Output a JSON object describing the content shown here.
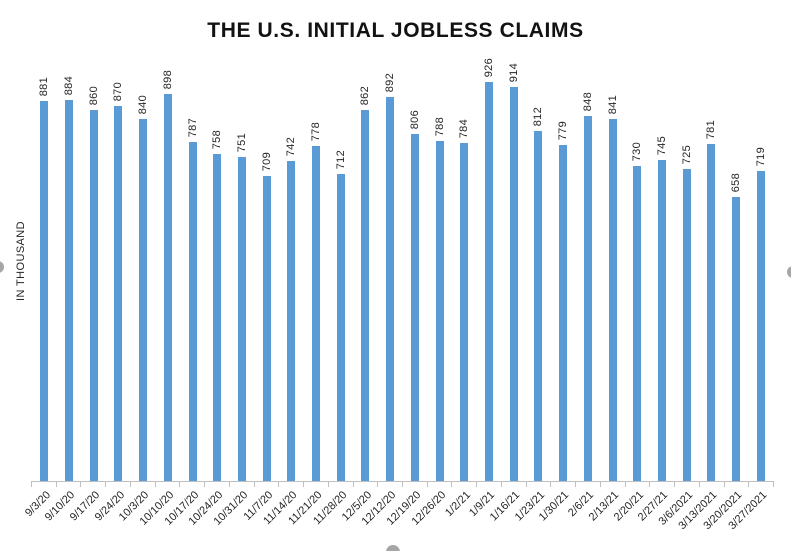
{
  "chart_data": {
    "type": "bar",
    "title": "THE U.S. INITIAL JOBLESS CLAIMS",
    "xlabel": "",
    "ylabel": "IN THOUSAND",
    "categories": [
      "9/3/20",
      "9/10/20",
      "9/17/20",
      "9/24/20",
      "10/3/20",
      "10/10/20",
      "10/17/20",
      "10/24/20",
      "10/31/20",
      "11/7/20",
      "11/14/20",
      "11/21/20",
      "11/28/20",
      "12/5/20",
      "12/12/20",
      "12/19/20",
      "12/26/20",
      "1/2/21",
      "1/9/21",
      "1/16/21",
      "1/23/21",
      "1/30/21",
      "2/6/21",
      "2/13/21",
      "2/20/21",
      "2/27/21",
      "3/6/2021",
      "3/13/2021",
      "3/20/2021",
      "3/27/2021"
    ],
    "values": [
      881,
      884,
      860,
      870,
      840,
      898,
      787,
      758,
      751,
      709,
      742,
      778,
      712,
      862,
      892,
      806,
      788,
      784,
      926,
      914,
      812,
      779,
      848,
      841,
      730,
      745,
      725,
      781,
      658,
      719
    ],
    "ylim": [
      0,
      926
    ],
    "grid": false,
    "legend_position": "none",
    "data_labels_rotation_deg": 90,
    "category_labels_rotation_deg": 45,
    "colors": {
      "bar": "#5B9BD5",
      "axis": "#BFBFBF",
      "text": "#262626",
      "handle": "#A6A6A6"
    }
  }
}
